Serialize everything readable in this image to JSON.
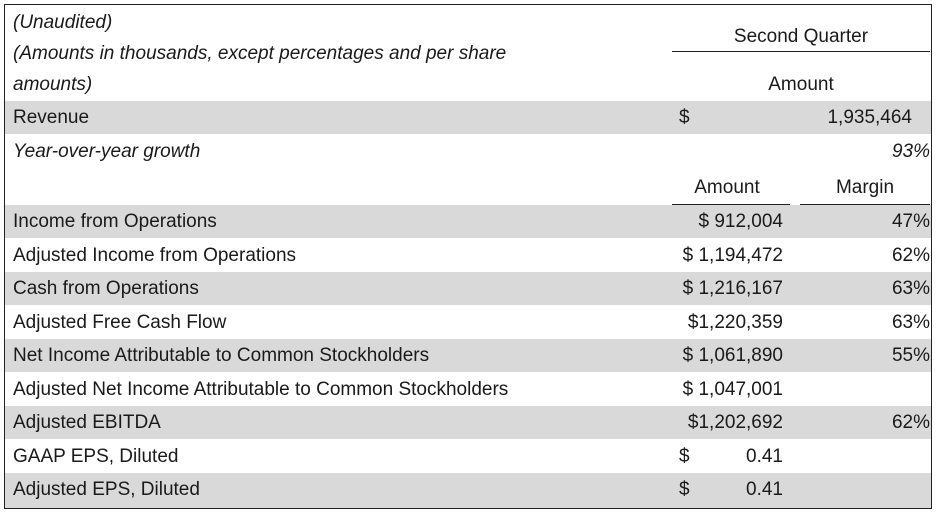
{
  "header": {
    "unaudited": "(Unaudited)",
    "amounts_line1": "(Amounts in thousands, except percentages and per share",
    "amounts_line2": "amounts)",
    "period": "Second Quarter",
    "amount_col": "Amount",
    "amount_col2": "Amount",
    "margin_col": "Margin"
  },
  "revenue": {
    "label": "Revenue",
    "currency": "$",
    "value": "1,935,464"
  },
  "growth": {
    "label": "Year-over-year growth",
    "value": "93%"
  },
  "rows": [
    {
      "label": "Income from Operations",
      "amount": "$  912,004",
      "margin": "47%"
    },
    {
      "label": "Adjusted Income from Operations",
      "amount": "$ 1,194,472",
      "margin": "62%"
    },
    {
      "label": "Cash from Operations",
      "amount": "$ 1,216,167",
      "margin": "63%"
    },
    {
      "label": "Adjusted Free Cash Flow",
      "amount": "$1,220,359",
      "margin": "63%"
    },
    {
      "label": "Net Income Attributable to Common Stockholders",
      "amount": "$ 1,061,890",
      "margin": "55%"
    },
    {
      "label": "Adjusted Net Income Attributable to Common Stockholders",
      "amount": "$ 1,047,001",
      "margin": ""
    },
    {
      "label": "Adjusted EBITDA",
      "amount": "$1,202,692",
      "margin": "62%"
    }
  ],
  "eps_rows": [
    {
      "label": "GAAP EPS, Diluted",
      "currency": "$",
      "value": "0.41"
    },
    {
      "label": "Adjusted EPS, Diluted",
      "currency": "$",
      "value": "0.41"
    }
  ]
}
